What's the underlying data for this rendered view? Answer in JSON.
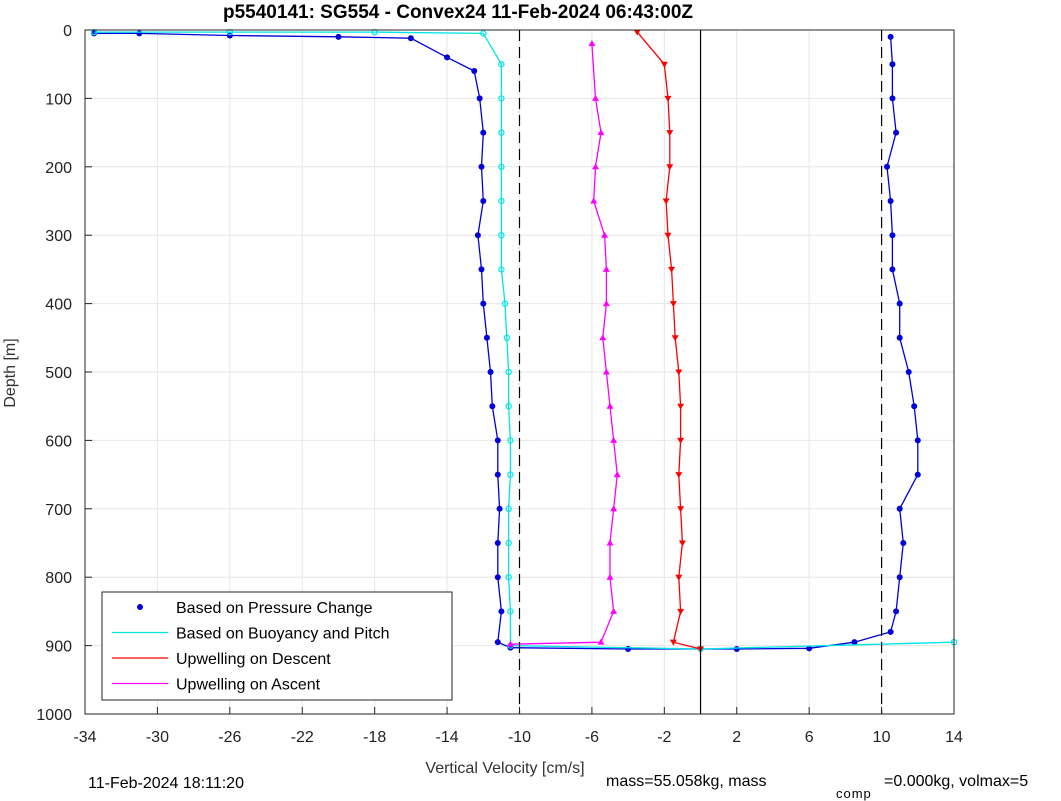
{
  "chart_data": {
    "type": "scatter",
    "title": "p5540141: SG554 - Convex24 11-Feb-2024 06:43:00Z",
    "xlabel": "Vertical Velocity [cm/s]",
    "ylabel": "Depth [m]",
    "xlim": [
      -34,
      14
    ],
    "ylim": [
      0,
      1000
    ],
    "y_reversed": true,
    "grid": true,
    "x_ticks": [
      "-34",
      "-30",
      "-26",
      "-22",
      "-18",
      "-14",
      "-10",
      "-6",
      "-2",
      "2",
      "6",
      "10",
      "14"
    ],
    "x_tick_values": [
      -34,
      -30,
      -26,
      -22,
      -18,
      -14,
      -10,
      -6,
      -2,
      2,
      6,
      10,
      14
    ],
    "y_ticks": [
      "0",
      "100",
      "200",
      "300",
      "400",
      "500",
      "600",
      "700",
      "800",
      "900",
      "1000"
    ],
    "y_tick_values": [
      0,
      100,
      200,
      300,
      400,
      500,
      600,
      700,
      800,
      900,
      1000
    ],
    "legend_position": "bottom-left",
    "reference_lines": [
      {
        "x": -10,
        "style": "dashed",
        "color": "#000000"
      },
      {
        "x": 0,
        "style": "solid",
        "color": "#000000"
      },
      {
        "x": 10,
        "style": "dashed",
        "color": "#000000"
      }
    ],
    "series": [
      {
        "name": "Based on Pressure Change",
        "color": "#0000dd",
        "marker": "dot",
        "points": [
          [
            -33.5,
            5
          ],
          [
            -31,
            5
          ],
          [
            -26,
            8
          ],
          [
            -20,
            10
          ],
          [
            -16,
            12
          ],
          [
            -14,
            40
          ],
          [
            -12.5,
            60
          ],
          [
            -12.2,
            100
          ],
          [
            -12,
            150
          ],
          [
            -12.1,
            200
          ],
          [
            -12,
            250
          ],
          [
            -12.3,
            300
          ],
          [
            -12.1,
            350
          ],
          [
            -12,
            400
          ],
          [
            -11.8,
            450
          ],
          [
            -11.6,
            500
          ],
          [
            -11.5,
            550
          ],
          [
            -11.2,
            600
          ],
          [
            -11.2,
            650
          ],
          [
            -11.1,
            700
          ],
          [
            -11.2,
            750
          ],
          [
            -11.2,
            800
          ],
          [
            -11,
            850
          ],
          [
            -11.2,
            895
          ],
          [
            -10.5,
            903
          ],
          [
            -4,
            905
          ],
          [
            2,
            905
          ],
          [
            6,
            904
          ],
          [
            8.5,
            895
          ],
          [
            10.5,
            880
          ],
          [
            10.8,
            850
          ],
          [
            11,
            800
          ],
          [
            11.2,
            750
          ],
          [
            11,
            700
          ],
          [
            12,
            650
          ],
          [
            12,
            600
          ],
          [
            11.8,
            550
          ],
          [
            11.5,
            500
          ],
          [
            11,
            450
          ],
          [
            11,
            400
          ],
          [
            10.6,
            350
          ],
          [
            10.6,
            300
          ],
          [
            10.5,
            250
          ],
          [
            10.3,
            200
          ],
          [
            10.8,
            150
          ],
          [
            10.6,
            100
          ],
          [
            10.6,
            50
          ],
          [
            10.5,
            10
          ]
        ]
      },
      {
        "name": "Based on Buoyancy and Pitch",
        "color": "#00e5e5",
        "marker": "circle",
        "points": [
          [
            -33.5,
            3
          ],
          [
            -26,
            3
          ],
          [
            -18,
            3
          ],
          [
            -12,
            5
          ],
          [
            -11,
            50
          ],
          [
            -11,
            100
          ],
          [
            -11,
            150
          ],
          [
            -11,
            200
          ],
          [
            -11,
            250
          ],
          [
            -11,
            300
          ],
          [
            -11,
            350
          ],
          [
            -10.8,
            400
          ],
          [
            -10.7,
            450
          ],
          [
            -10.6,
            500
          ],
          [
            -10.6,
            550
          ],
          [
            -10.5,
            600
          ],
          [
            -10.5,
            650
          ],
          [
            -10.6,
            700
          ],
          [
            -10.6,
            750
          ],
          [
            -10.6,
            800
          ],
          [
            -10.5,
            850
          ],
          [
            -10.5,
            900
          ],
          [
            0,
            905
          ],
          [
            14,
            895
          ]
        ]
      },
      {
        "name": "Upwelling on Descent",
        "color": "#ff0000",
        "marker": "triangle-down",
        "points": [
          [
            -3.5,
            3
          ],
          [
            -2,
            50
          ],
          [
            -1.8,
            100
          ],
          [
            -1.7,
            150
          ],
          [
            -1.7,
            200
          ],
          [
            -1.9,
            250
          ],
          [
            -1.8,
            300
          ],
          [
            -1.6,
            350
          ],
          [
            -1.5,
            400
          ],
          [
            -1.4,
            450
          ],
          [
            -1.2,
            500
          ],
          [
            -1.1,
            550
          ],
          [
            -1.1,
            600
          ],
          [
            -1.2,
            650
          ],
          [
            -1.1,
            700
          ],
          [
            -1.0,
            750
          ],
          [
            -1.2,
            800
          ],
          [
            -1.1,
            850
          ],
          [
            -1.5,
            895
          ],
          [
            0,
            905
          ]
        ]
      },
      {
        "name": "Upwelling on Ascent",
        "color": "#ff00ff",
        "marker": "triangle-up",
        "points": [
          [
            -6,
            20
          ],
          [
            -5.8,
            100
          ],
          [
            -5.5,
            150
          ],
          [
            -5.8,
            200
          ],
          [
            -5.9,
            250
          ],
          [
            -5.3,
            300
          ],
          [
            -5.2,
            350
          ],
          [
            -5.2,
            400
          ],
          [
            -5.4,
            450
          ],
          [
            -5.2,
            500
          ],
          [
            -5.0,
            550
          ],
          [
            -4.8,
            600
          ],
          [
            -4.6,
            650
          ],
          [
            -4.8,
            700
          ],
          [
            -5.0,
            750
          ],
          [
            -5.0,
            800
          ],
          [
            -4.8,
            850
          ],
          [
            -5.5,
            895
          ],
          [
            -10.5,
            898
          ]
        ]
      }
    ]
  },
  "footer": {
    "timestamp": "11-Feb-2024 18:11:20",
    "mass_text": "mass=55.058kg, mass",
    "comp_sub": "comp",
    "comp_text": "=0.000kg, volmax=5"
  }
}
